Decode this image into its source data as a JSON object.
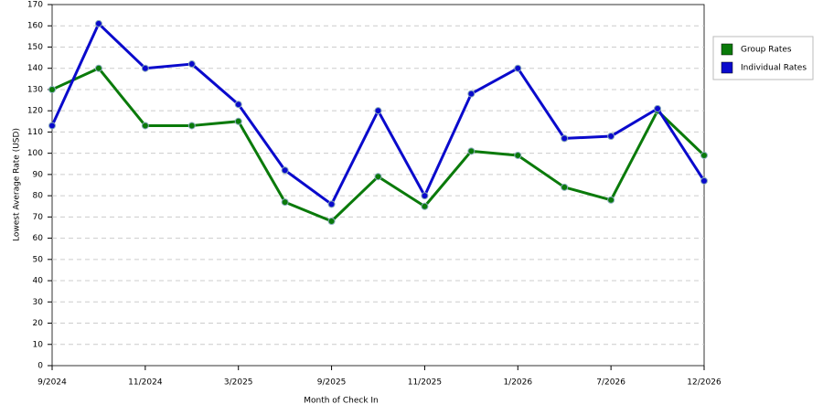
{
  "chart_data": {
    "type": "line",
    "y_label": "Lowest Average Rate (USD)",
    "x_label": "Month of Check In",
    "categories": [
      "9/2024",
      null,
      "11/2024",
      null,
      "3/2025",
      null,
      "9/2025",
      null,
      "11/2025",
      null,
      "1/2026",
      null,
      "7/2026",
      null,
      "12/2026"
    ],
    "series": [
      {
        "name": "Group Rates",
        "color": "#0a7a0a",
        "values": [
          130,
          140,
          113,
          113,
          115,
          77,
          68,
          89,
          75,
          101,
          99,
          84,
          78,
          120,
          99
        ]
      },
      {
        "name": "Individual Rates",
        "color": "#0a0acc",
        "values": [
          113,
          161,
          140,
          142,
          123,
          92,
          76,
          120,
          80,
          128,
          140,
          107,
          108,
          121,
          87
        ]
      }
    ],
    "ylim": [
      0,
      170
    ],
    "yticks": [
      0,
      10,
      20,
      30,
      40,
      50,
      60,
      70,
      80,
      90,
      100,
      110,
      120,
      130,
      140,
      150,
      160,
      170
    ],
    "grid": true,
    "legend": "right"
  }
}
